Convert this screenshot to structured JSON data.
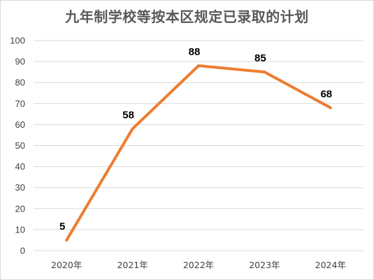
{
  "chart_data": {
    "type": "line",
    "title": "九年制学校等按本区规定已录取的计划",
    "categories": [
      "2020年",
      "2021年",
      "2022年",
      "2023年",
      "2024年"
    ],
    "series": [
      {
        "values": [
          5,
          58,
          88,
          85,
          68
        ]
      }
    ],
    "ylim": [
      0,
      100
    ],
    "yticks": [
      0,
      10,
      20,
      30,
      40,
      50,
      60,
      70,
      80,
      90,
      100
    ],
    "grid": true,
    "data_labels": true,
    "line_color": "#ED7D31",
    "grid_color": "#D9D9D9"
  }
}
